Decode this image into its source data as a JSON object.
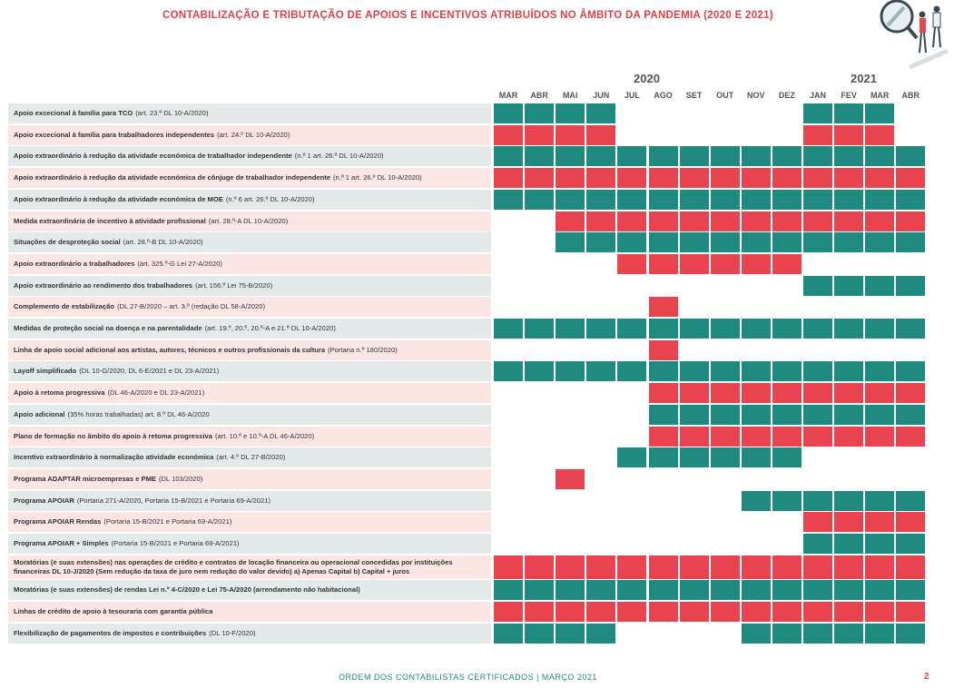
{
  "title": "CONTABILIZAÇÃO E TRIBUTAÇÃO DE APOIOS E INCENTIVOS ATRIBUÍDOS NO ÂMBITO DA PANDEMIA (2020 E 2021)",
  "years": [
    "2020",
    "2021"
  ],
  "months": [
    "MAR",
    "ABR",
    "MAI",
    "JUN",
    "JUL",
    "AGO",
    "SET",
    "OUT",
    "NOV",
    "DEZ",
    "JAN",
    "FEV",
    "MAR",
    "ABR"
  ],
  "colors": {
    "teal": "#1f8a80",
    "red": "#e8434f",
    "row_green": "#e4eaea",
    "row_pink": "#fbe6e3"
  },
  "rows": [
    {
      "name": "Apoio excecional à família para TCO",
      "note": "(art. 23.º DL 10-A/2020)",
      "bg": "g",
      "color": "t",
      "active": [
        0,
        1,
        2,
        3,
        10,
        11,
        12
      ]
    },
    {
      "name": "Apoio excecional à família para trabalhadores independentes",
      "note": "(art. 24.º DL 10-A/2020)",
      "bg": "r",
      "color": "red",
      "active": [
        0,
        1,
        2,
        3,
        10,
        11,
        12
      ]
    },
    {
      "name": "Apoio extraordinário à redução da atividade económica de trabalhador independente",
      "note": "(n.º 1 art. 26.º DL 10-A/2020)",
      "bg": "g",
      "color": "t",
      "active": [
        0,
        1,
        2,
        3,
        4,
        5,
        6,
        7,
        8,
        9,
        10,
        11,
        12,
        13
      ]
    },
    {
      "name": "Apoio extraordinário à redução da atividade económica de cônjuge de trabalhador independente",
      "note": "(n.º 1 art. 26.º DL 10-A/2020)",
      "bg": "r",
      "color": "red",
      "active": [
        0,
        1,
        2,
        3,
        4,
        5,
        6,
        7,
        8,
        9,
        10,
        11,
        12,
        13
      ]
    },
    {
      "name": "Apoio extraordinário à redução da atividade económica de MOE",
      "note": "(n.º 6 art. 26.º DL 10-A/2020)",
      "bg": "g",
      "color": "t",
      "active": [
        0,
        1,
        2,
        3,
        4,
        5,
        6,
        7,
        8,
        9,
        10,
        11,
        12,
        13
      ]
    },
    {
      "name": "Medida extraordinária de incentivo à atividade profissional",
      "note": "(art. 28.º-A DL 10-A/2020)",
      "bg": "r",
      "color": "red",
      "active": [
        2,
        3,
        4,
        5,
        6,
        7,
        8,
        9,
        10,
        11,
        12,
        13
      ]
    },
    {
      "name": "Situações de desproteção social",
      "note": "(art. 28.º-B DL 10-A/2020)",
      "bg": "g",
      "color": "t",
      "active": [
        2,
        3,
        4,
        5,
        6,
        7,
        8,
        9,
        10,
        11,
        12,
        13
      ]
    },
    {
      "name": "Apoio extraordinário a trabalhadores",
      "note": "(art. 325.º-G Lei 27-A/2020)",
      "bg": "r",
      "color": "red",
      "active": [
        4,
        5,
        6,
        7,
        8,
        9
      ]
    },
    {
      "name": "Apoio extraordinário ao rendimento dos trabalhadores",
      "note": "(art. 156.º Lei 75-B/2020)",
      "bg": "g",
      "color": "t",
      "active": [
        10,
        11,
        12,
        13
      ]
    },
    {
      "name": "Complemento de estabilização",
      "note": "(DL 27-B/2020 – art. 3.º (redação DL 58-A/2020)",
      "bg": "r",
      "color": "red",
      "active": [
        5
      ]
    },
    {
      "name": "Medidas de proteção social na doença e na parentalidade",
      "note": "(art. 19.º, 20.º, 20.º-A e 21.º DL 10-A/2020)",
      "bg": "g",
      "color": "t",
      "active": [
        0,
        1,
        2,
        3,
        4,
        5,
        6,
        7,
        8,
        9,
        10,
        11,
        12,
        13
      ]
    },
    {
      "name": "Linha de apoio social adicional aos artistas, autores, técnicos e outros profissionais da cultura",
      "note": "(Portaria n.º 180/2020)",
      "bg": "r",
      "color": "red",
      "active": [
        5
      ]
    },
    {
      "name": "Layoff simplificado",
      "note": "(DL 10-G/2020, DL 6-E/2021 e DL 23-A/2021)",
      "bg": "g",
      "color": "t",
      "active": [
        0,
        1,
        2,
        3,
        4,
        5,
        6,
        7,
        8,
        9,
        10,
        11,
        12,
        13
      ]
    },
    {
      "name": "Apoio à retoma progressiva",
      "note": "(DL 46-A/2020 e DL 23-A/2021)",
      "bg": "r",
      "color": "red",
      "active": [
        5,
        6,
        7,
        8,
        9,
        10,
        11,
        12,
        13
      ]
    },
    {
      "name": "Apoio adicional",
      "note": "(35% horas trabalhadas) art. 8.º DL 46-A/2020",
      "bg": "g",
      "color": "t",
      "active": [
        5,
        6,
        7,
        8,
        9,
        10,
        11,
        12,
        13
      ]
    },
    {
      "name": "Plano de formação no âmbito do apoio à retoma progressiva",
      "note": "(art. 10.º e 10.º-A DL 46-A/2020)",
      "bg": "r",
      "color": "red",
      "active": [
        5,
        6,
        7,
        8,
        9,
        10,
        11,
        12,
        13
      ]
    },
    {
      "name": "Incentivo extraordinário à normalização atividade económica",
      "note": "(art. 4.º DL 27-B/2020)",
      "bg": "g",
      "color": "t",
      "active": [
        4,
        5,
        6,
        7,
        8,
        9
      ]
    },
    {
      "name": "Programa ADAPTAR microempresas e PME",
      "note": "(DL 103/2020)",
      "bg": "r",
      "color": "red",
      "active": [
        2
      ]
    },
    {
      "name": "Programa APOIAR",
      "note": "(Portaria 271-A/2020, Portaria 15-B/2021 e Portaria 69-A/2021)",
      "bg": "g",
      "color": "t",
      "active": [
        8,
        9,
        10,
        11,
        12,
        13
      ]
    },
    {
      "name": "Programa APOIAR Rendas",
      "note": "(Portaria 15-B/2021 e Portaria 69-A/2021)",
      "bg": "r",
      "color": "red",
      "active": [
        10,
        11,
        12,
        13
      ]
    },
    {
      "name": "Programa APOIAR + Simples",
      "note": "(Portaria 15-B/2021 e Portaria 69-A/2021)",
      "bg": "g",
      "color": "t",
      "active": [
        10,
        11,
        12,
        13
      ]
    },
    {
      "name": "Moratórias (e suas extensões) nas operações de crédito e contratos de locação financeira ou operacional concedidas por instituições financeiras DL 10-J/2020 (Sem redução da taxa de juro nem redução do valor devido) a) Apenas Capital b) Capital + juros",
      "note": "",
      "bg": "r",
      "color": "red",
      "active": [
        0,
        1,
        2,
        3,
        4,
        5,
        6,
        7,
        8,
        9,
        10,
        11,
        12,
        13
      ],
      "tall": true
    },
    {
      "name": "Moratórias (e suas extensões) de rendas Lei n.º 4-C/2020 e Lei 75-A/2020 (arrendamento não habitacional)",
      "note": "",
      "bg": "g",
      "color": "t",
      "active": [
        0,
        1,
        2,
        3,
        4,
        5,
        6,
        7,
        8,
        9,
        10,
        11,
        12,
        13
      ]
    },
    {
      "name": "Linhas de crédito de apoio à tesouraria com garantia pública",
      "note": "",
      "bg": "r",
      "color": "red",
      "active": [
        0,
        1,
        2,
        3,
        4,
        5,
        6,
        7,
        8,
        9,
        10,
        11,
        12,
        13
      ]
    },
    {
      "name": "Flexibilização de pagamentos de impostos e contribuições",
      "note": "(DL 10-F/2020)",
      "bg": "g",
      "color": "t",
      "active": [
        0,
        1,
        2,
        3,
        8,
        9,
        10,
        11,
        12,
        13
      ]
    }
  ],
  "footer": "ORDEM DOS CONTABILISTAS CERTIFICADOS | MARÇO 2021",
  "page_number": "2"
}
